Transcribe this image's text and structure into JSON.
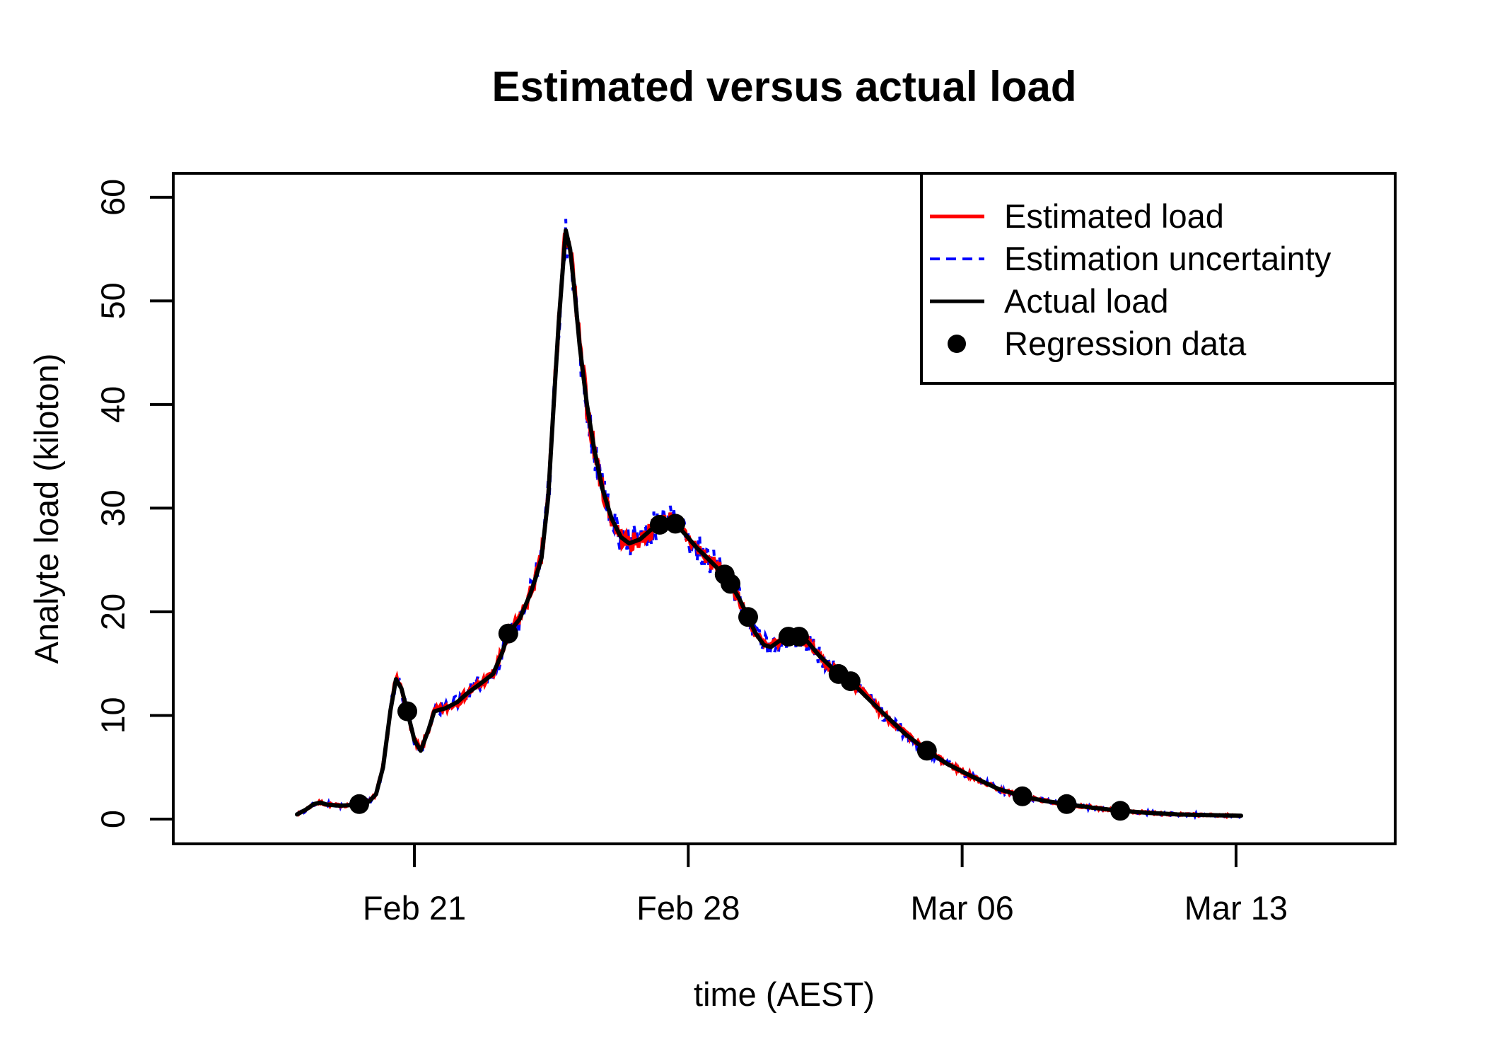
{
  "title": "Estimated versus actual load",
  "x_axis": {
    "label": "time (AEST)",
    "tick_labels": [
      "Feb 21",
      "Feb 28",
      "Mar 06",
      "Mar 13"
    ],
    "tick_days": [
      0,
      7,
      14,
      21
    ]
  },
  "y_axis": {
    "label": "Analyte load (kiloton)",
    "tick_values": [
      0,
      10,
      20,
      30,
      40,
      50,
      60
    ]
  },
  "legend": {
    "items": [
      {
        "label": "Estimated load",
        "marker": "solid-line",
        "color": "#ff0000"
      },
      {
        "label": "Estimation uncertainty",
        "marker": "dashed-line",
        "color": "#0000ff"
      },
      {
        "label": "Actual load",
        "marker": "solid-line",
        "color": "#000000"
      },
      {
        "label": "Regression data",
        "marker": "filled-circle",
        "color": "#000000"
      }
    ]
  },
  "chart_data": {
    "type": "line",
    "title": "Estimated versus actual load",
    "xlabel": "time (AEST)",
    "ylabel": "Analyte load (kiloton)",
    "x_unit": "days relative to Feb 21",
    "xlim_days": [
      -6.2,
      25.1
    ],
    "ylim": [
      -2.4,
      62.3
    ],
    "grid": false,
    "legend_position": "top-right",
    "series": [
      {
        "name": "Estimated load",
        "color": "#ff0000",
        "style": "solid",
        "noise_base": 0.08,
        "noise_per_unit": 0.03,
        "noise_cap": 1.3
      },
      {
        "name": "Estimation uncertainty",
        "color": "#0000ff",
        "style": "dashed",
        "noise_base": 0.15,
        "noise_per_unit": 0.05,
        "noise_cap": 2.4
      },
      {
        "name": "Actual load",
        "color": "#000000",
        "style": "solid"
      }
    ],
    "actual_load_points_day_value": [
      [
        -3.0,
        0.45
      ],
      [
        -2.78,
        0.9
      ],
      [
        -2.57,
        1.45
      ],
      [
        -2.4,
        1.6
      ],
      [
        -2.24,
        1.4
      ],
      [
        -1.92,
        1.3
      ],
      [
        -1.61,
        1.35
      ],
      [
        -1.41,
        1.45
      ],
      [
        -1.16,
        1.7
      ],
      [
        -0.98,
        2.4
      ],
      [
        -0.8,
        5.0
      ],
      [
        -0.61,
        10.5
      ],
      [
        -0.47,
        13.5
      ],
      [
        -0.33,
        12.6
      ],
      [
        -0.18,
        10.4
      ],
      [
        0.0,
        7.6
      ],
      [
        0.16,
        6.6
      ],
      [
        0.36,
        8.6
      ],
      [
        0.51,
        10.4
      ],
      [
        0.8,
        10.7
      ],
      [
        1.1,
        11.3
      ],
      [
        1.34,
        12.1
      ],
      [
        1.7,
        13.1
      ],
      [
        2.01,
        14.0
      ],
      [
        2.24,
        16.0
      ],
      [
        2.4,
        17.9
      ],
      [
        2.69,
        19.3
      ],
      [
        2.96,
        21.7
      ],
      [
        3.11,
        23.4
      ],
      [
        3.25,
        25.2
      ],
      [
        3.42,
        31.0
      ],
      [
        3.56,
        40.0
      ],
      [
        3.69,
        48.0
      ],
      [
        3.8,
        53.5
      ],
      [
        3.87,
        56.8
      ],
      [
        3.98,
        55.0
      ],
      [
        4.08,
        51.5
      ],
      [
        4.23,
        45.5
      ],
      [
        4.41,
        40.0
      ],
      [
        4.59,
        35.8
      ],
      [
        4.81,
        31.8
      ],
      [
        5.04,
        29.0
      ],
      [
        5.28,
        27.2
      ],
      [
        5.49,
        26.6
      ],
      [
        5.77,
        27.0
      ],
      [
        6.04,
        27.9
      ],
      [
        6.27,
        28.4
      ],
      [
        6.49,
        28.9
      ],
      [
        6.67,
        28.5
      ],
      [
        6.94,
        27.4
      ],
      [
        7.21,
        26.2
      ],
      [
        7.48,
        25.2
      ],
      [
        7.72,
        24.3
      ],
      [
        7.93,
        23.6
      ],
      [
        8.08,
        22.7
      ],
      [
        8.3,
        21.3
      ],
      [
        8.53,
        19.5
      ],
      [
        8.71,
        18.0
      ],
      [
        8.93,
        16.8
      ],
      [
        9.11,
        16.6
      ],
      [
        9.33,
        17.2
      ],
      [
        9.56,
        17.6
      ],
      [
        9.83,
        17.6
      ],
      [
        10.05,
        17.1
      ],
      [
        10.34,
        15.8
      ],
      [
        10.59,
        14.9
      ],
      [
        10.84,
        14.0
      ],
      [
        11.15,
        13.3
      ],
      [
        11.55,
        11.8
      ],
      [
        12.04,
        10.0
      ],
      [
        12.58,
        8.1
      ],
      [
        13.1,
        6.6
      ],
      [
        13.63,
        5.3
      ],
      [
        14.31,
        4.0
      ],
      [
        14.93,
        2.9
      ],
      [
        15.54,
        2.2
      ],
      [
        16.12,
        1.75
      ],
      [
        16.67,
        1.45
      ],
      [
        17.33,
        1.1
      ],
      [
        18.04,
        0.8
      ],
      [
        18.78,
        0.6
      ],
      [
        19.5,
        0.45
      ],
      [
        20.32,
        0.38
      ],
      [
        21.13,
        0.33
      ]
    ],
    "regression_points_day_value": [
      [
        -1.41,
        1.45
      ],
      [
        -0.18,
        10.4
      ],
      [
        2.4,
        17.9
      ],
      [
        6.27,
        28.4
      ],
      [
        6.67,
        28.5
      ],
      [
        7.93,
        23.6
      ],
      [
        8.08,
        22.7
      ],
      [
        8.53,
        19.5
      ],
      [
        9.56,
        17.6
      ],
      [
        9.83,
        17.6
      ],
      [
        10.84,
        14.0
      ],
      [
        11.15,
        13.3
      ],
      [
        13.1,
        6.6
      ],
      [
        15.54,
        2.2
      ],
      [
        16.67,
        1.45
      ],
      [
        18.04,
        0.8
      ]
    ]
  }
}
